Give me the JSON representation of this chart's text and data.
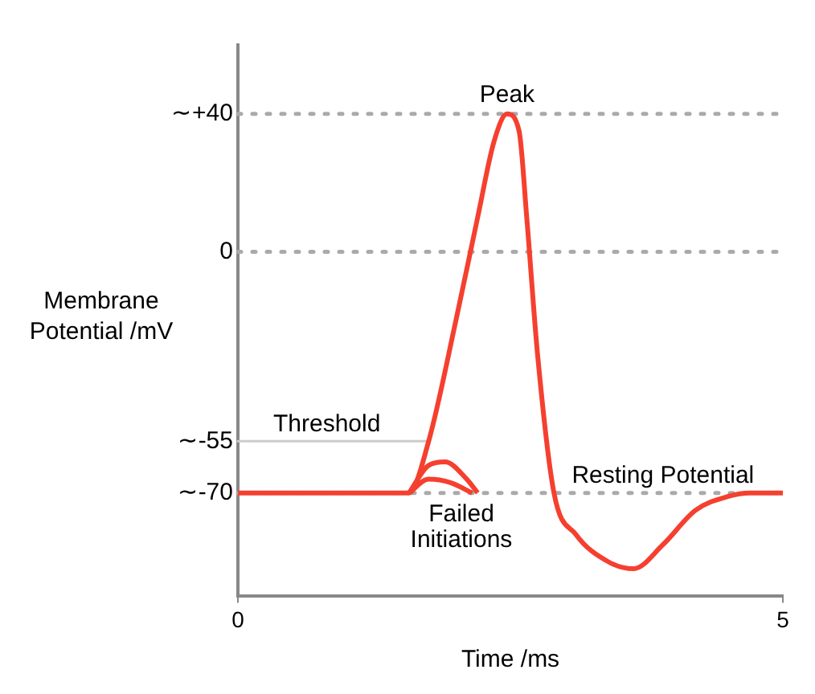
{
  "chart_data": {
    "type": "line",
    "xlabel": "Time /ms",
    "ylabel": "Membrane Potential /mV",
    "xlim": [
      0,
      5
    ],
    "xticks": [
      0,
      5
    ],
    "ylim": [
      -100,
      60
    ],
    "yticks": [
      {
        "value": 40,
        "label": "∼+40"
      },
      0,
      {
        "value": -55,
        "label": "∼-55"
      },
      {
        "value": -70,
        "label": "∼-70"
      }
    ],
    "grid": false,
    "legend": false,
    "marker": "none",
    "line_style": "solid",
    "series": [
      {
        "color": "#f5402f",
        "x": [
          0,
          1.57,
          1.75,
          2.0,
          2.2,
          2.35,
          2.47,
          2.58,
          2.65,
          2.75,
          2.9,
          3.1,
          3.4,
          3.63,
          3.9,
          4.2,
          4.5,
          4.7,
          5
        ],
        "values": [
          -70,
          -70,
          -55,
          -20,
          10,
          32,
          40,
          35,
          10,
          -30,
          -70,
          -82,
          -90,
          -92,
          -85,
          -75,
          -71,
          -70,
          -70
        ]
      },
      {
        "color": "#f5402f",
        "x": [
          1.57,
          1.75,
          1.9,
          2.1,
          2.2
        ],
        "values": [
          -70,
          -62,
          -61,
          -66,
          -70
        ]
      },
      {
        "color": "#f5402f",
        "x": [
          1.57,
          1.75,
          1.95,
          2.15
        ],
        "values": [
          -70,
          -66,
          -67,
          -70
        ]
      }
    ],
    "ref_lines": [
      {
        "axis": "y",
        "value": 40,
        "label": null,
        "color": "#aaaaaa",
        "line_style": "dotted"
      },
      {
        "axis": "y",
        "value": 0,
        "label": null,
        "color": "#aaaaaa",
        "line_style": "dotted"
      },
      {
        "axis": "y",
        "value": -55,
        "label": "Threshold",
        "color": "#cccccc",
        "line_style": "solid"
      },
      {
        "axis": "y",
        "value": -70,
        "label": "Resting Potential",
        "color": "#aaaaaa",
        "line_style": "dotted"
      }
    ],
    "annotations": [
      {
        "text": "Peak",
        "x": 2.47,
        "y": 40
      },
      {
        "text": "Failed Initiations",
        "x": 2.05,
        "y": -70
      }
    ]
  }
}
